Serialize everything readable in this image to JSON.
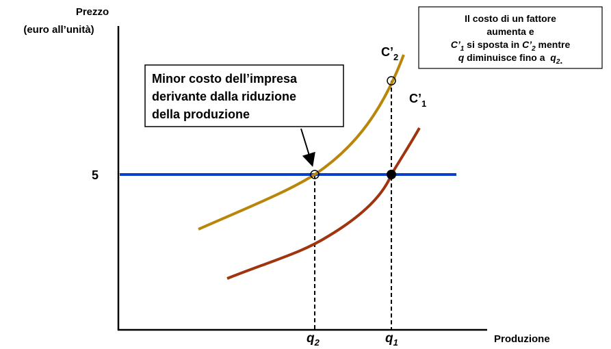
{
  "axes": {
    "y_label": [
      "Prezzo",
      "(euro all’unità)"
    ],
    "x_label": "Produzione"
  },
  "price_label": "5",
  "curves": [
    {
      "name": "C’",
      "sub": "2"
    },
    {
      "name": "C’",
      "sub": "1"
    }
  ],
  "quantities": [
    {
      "name": "q",
      "sub": "2"
    },
    {
      "name": "q",
      "sub": "1"
    }
  ],
  "annotation": [
    "Minor costo dell’impresa",
    "derivante dalla riduzione",
    "della produzione"
  ],
  "note": {
    "lines": [
      "Il costo di un fattore",
      "aumenta e"
    ],
    "line3": [
      "C’",
      "1",
      " si sposta in ",
      "C’",
      "2",
      " mentre"
    ],
    "line4": [
      "q",
      " diminuisce fino a  ",
      "q",
      "2",
      "."
    ]
  }
}
